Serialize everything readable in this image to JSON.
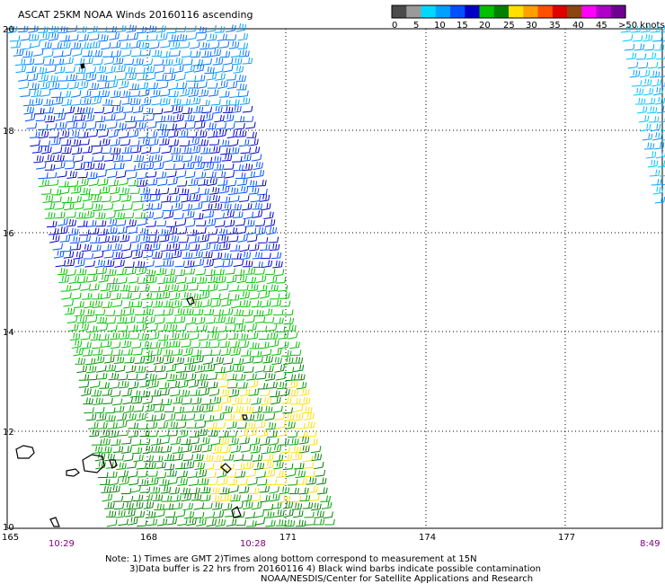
{
  "title": "ASCAT 25KM NOAA Winds 20160116 ascending",
  "legend": {
    "colors": [
      "#4a4a4a",
      "#9a9a9a",
      "#00d8ff",
      "#00a0ff",
      "#0050ff",
      "#0000c8",
      "#00c000",
      "#008000",
      "#ffe000",
      "#ffa000",
      "#ff5000",
      "#e00000",
      "#8b4513",
      "#ff00ff",
      "#b000c8",
      "#700090"
    ],
    "labels": [
      "0",
      "5",
      "10",
      "15",
      "20",
      "25",
      "30",
      "35",
      "40",
      "45",
      ">50 knots"
    ]
  },
  "axes": {
    "lat_labels": [
      "20",
      "18",
      "16",
      "14",
      "12",
      "10"
    ],
    "lon_labels": [
      "165",
      "168",
      "171",
      "174",
      "177"
    ]
  },
  "times": {
    "t1": "10:29",
    "t2": "10:28",
    "t3": "8:49"
  },
  "notes": {
    "line1": "Note: 1) Times are GMT 2)Times along bottom correspond to measurement at 15N",
    "line2": "3)Data buffer is 22 hrs from 20160116 4) Black wind barbs indicate possible contamination",
    "line3": "NOAA/NESDIS/Center for Satellite Applications and Research"
  }
}
